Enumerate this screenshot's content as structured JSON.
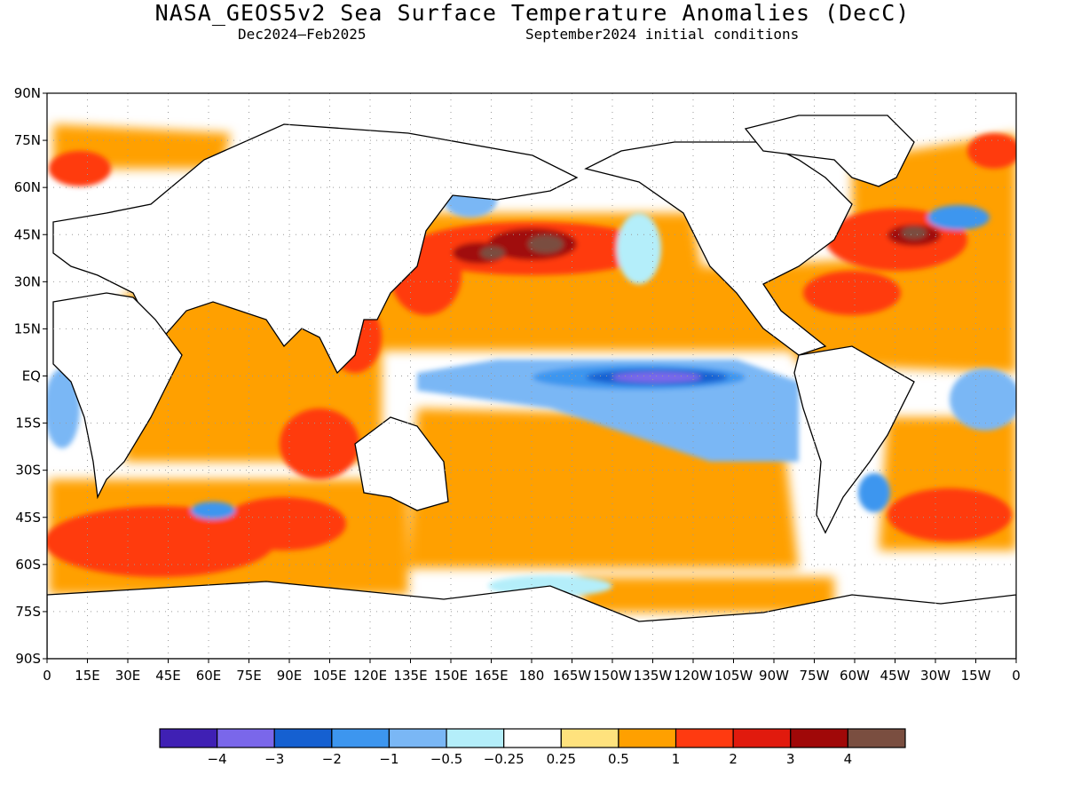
{
  "title": "NASA_GEOS5v2 Sea Surface Temperature Anomalies (DecC)",
  "subtitle_left": "Dec2024–Feb2025",
  "subtitle_right": "September2024 initial conditions",
  "lat_labels": [
    "90N",
    "75N",
    "60N",
    "45N",
    "30N",
    "15N",
    "EQ",
    "15S",
    "30S",
    "45S",
    "60S",
    "75S",
    "90S"
  ],
  "lon_labels": [
    "0",
    "15E",
    "30E",
    "45E",
    "60E",
    "75E",
    "90E",
    "105E",
    "120E",
    "135E",
    "150E",
    "165E",
    "180",
    "165W",
    "150W",
    "135W",
    "120W",
    "105W",
    "90W",
    "75W",
    "60W",
    "45W",
    "30W",
    "15W",
    "0"
  ],
  "colorbar": {
    "colors": [
      "#3f20b4",
      "#7a67ea",
      "#1560d1",
      "#3d96ef",
      "#7ab7f5",
      "#b4eefa",
      "#ffffff",
      "#ffe27d",
      "#ffa000",
      "#ff3a10",
      "#e11a0d",
      "#a00808",
      "#7a4e40"
    ],
    "labels": [
      "−4",
      "−3",
      "−2",
      "−1",
      "−0.5",
      "−0.25",
      "0.25",
      "0.5",
      "1",
      "2",
      "3",
      "4"
    ]
  },
  "colors": {
    "land": "#ffffff",
    "coast": "#000000",
    "grid": "#9a9a9a"
  }
}
